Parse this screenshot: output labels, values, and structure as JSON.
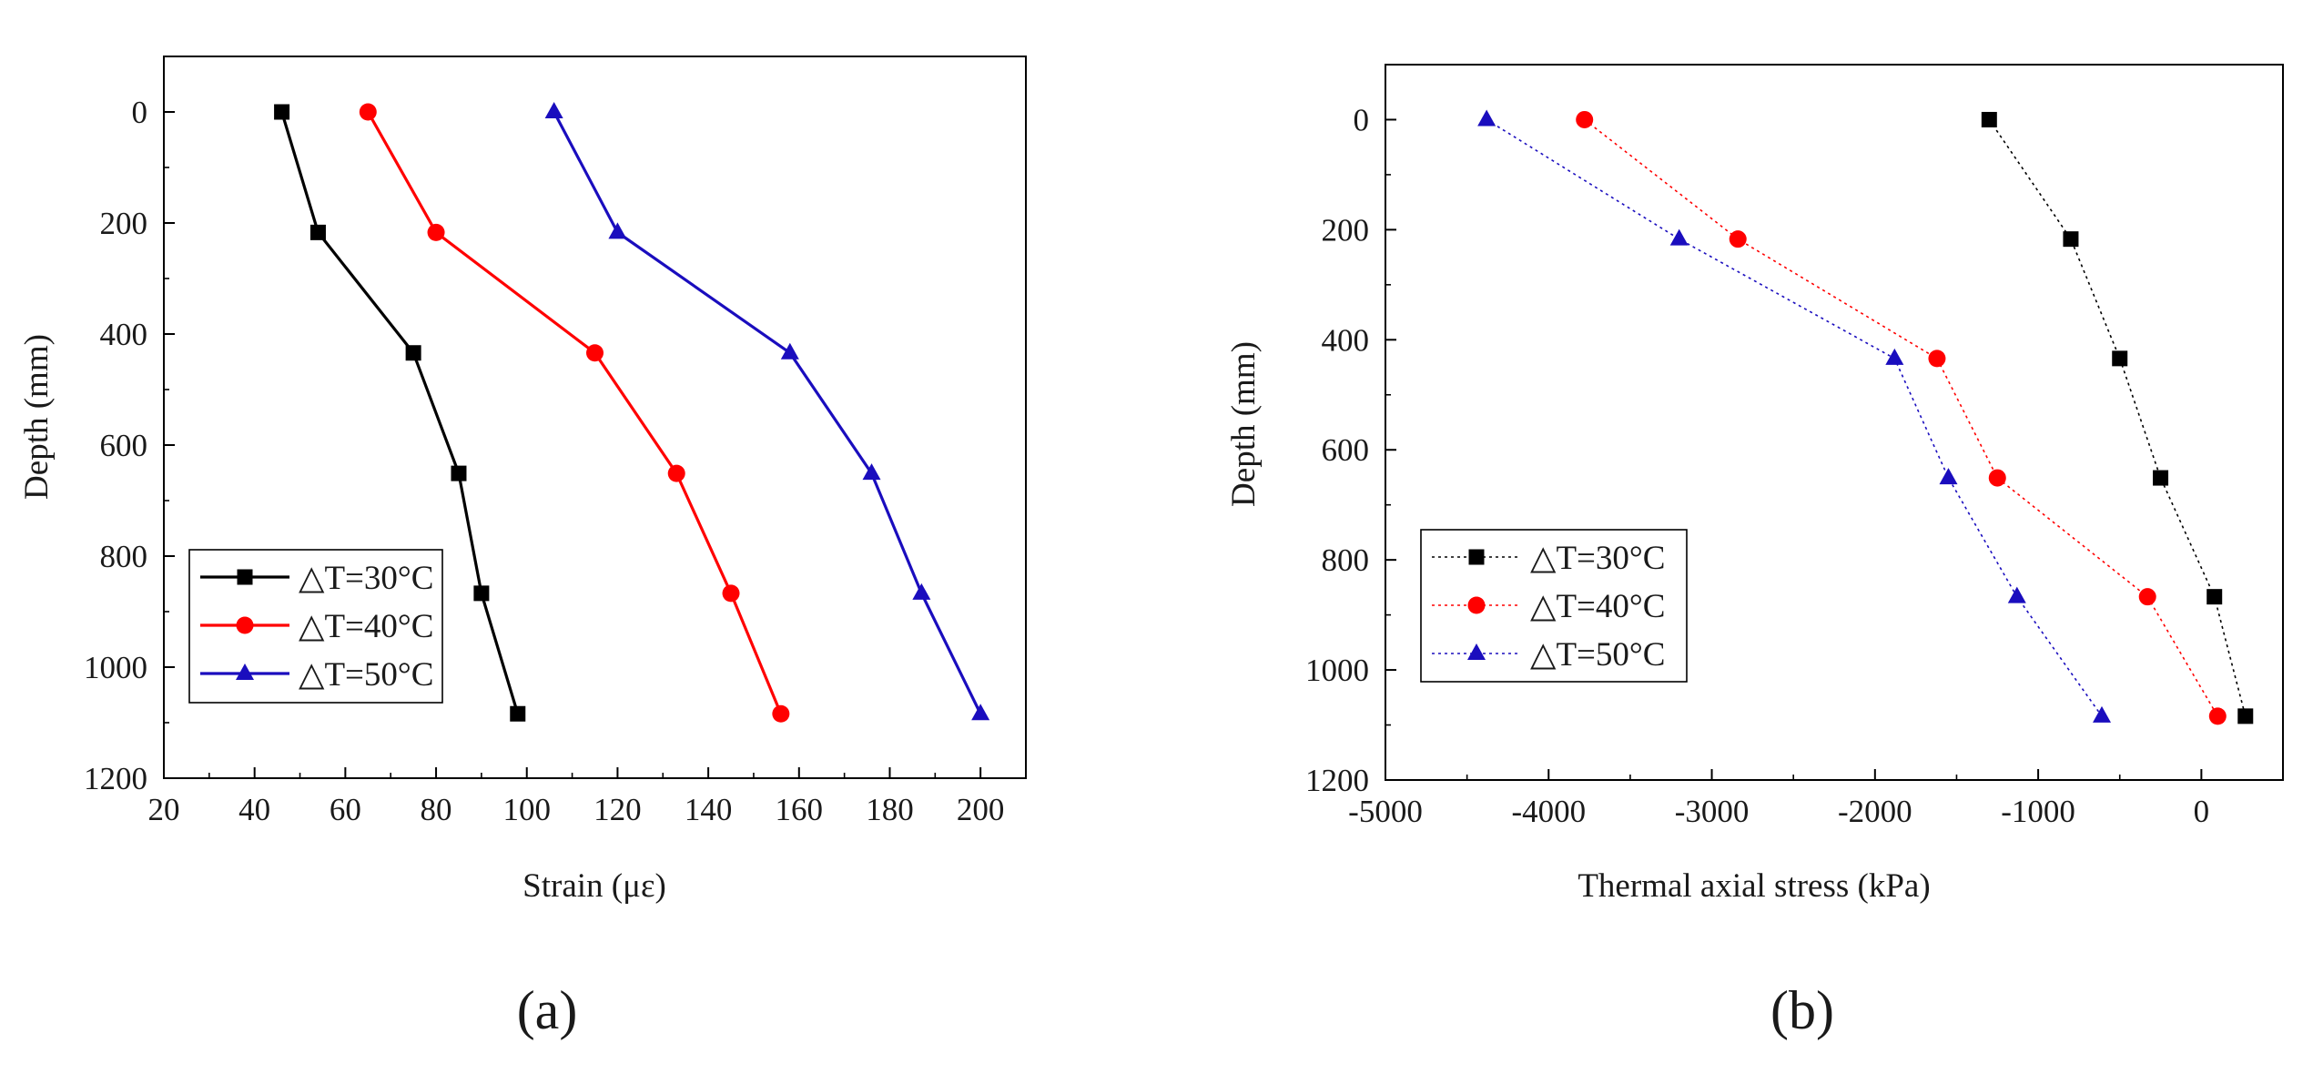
{
  "chart_data": [
    {
      "type": "line",
      "panel_label": "(a)",
      "title": "",
      "xlabel": "Strain (με)",
      "ylabel": "Depth (mm)",
      "xlim": [
        20,
        210
      ],
      "ylim": [
        1200,
        -100
      ],
      "y_inverted": true,
      "x_ticks": [
        20,
        40,
        60,
        80,
        100,
        120,
        140,
        160,
        180,
        200
      ],
      "x_tick_labels": [
        "20",
        "40",
        "60",
        "80",
        "100",
        "120",
        "140",
        "160",
        "180",
        "200"
      ],
      "y_ticks": [
        0,
        200,
        400,
        600,
        800,
        1000,
        1200
      ],
      "y_tick_labels": [
        "0",
        "200",
        "400",
        "600",
        "800",
        "1000",
        "1200"
      ],
      "legend_position": "bottom-left",
      "series": [
        {
          "name": "△T=30°C",
          "color": "#000000",
          "marker": "square",
          "line_style": "solid",
          "points": [
            [
              46,
              0
            ],
            [
              54,
              217
            ],
            [
              75,
              434
            ],
            [
              85,
              651
            ],
            [
              90,
              867
            ],
            [
              98,
              1084
            ]
          ]
        },
        {
          "name": "△T=40°C",
          "color": "#ff0000",
          "marker": "circle",
          "line_style": "solid",
          "points": [
            [
              65,
              0
            ],
            [
              80,
              217
            ],
            [
              115,
              434
            ],
            [
              133,
              651
            ],
            [
              145,
              867
            ],
            [
              156,
              1084
            ]
          ]
        },
        {
          "name": "△T=50°C",
          "color": "#1a0dbe",
          "marker": "triangle",
          "line_style": "solid",
          "points": [
            [
              106,
              0
            ],
            [
              120,
              217
            ],
            [
              158,
              434
            ],
            [
              176,
              651
            ],
            [
              187,
              867
            ],
            [
              200,
              1084
            ]
          ]
        }
      ]
    },
    {
      "type": "line",
      "panel_label": "(b)",
      "title": "",
      "xlabel": "Thermal axial stress (kPa)",
      "ylabel": "Depth (mm)",
      "xlim": [
        -5000,
        500
      ],
      "ylim": [
        1200,
        -100
      ],
      "y_inverted": true,
      "x_ticks": [
        -5000,
        -4000,
        -3000,
        -2000,
        -1000,
        0
      ],
      "x_tick_labels": [
        "-5000",
        "-4000",
        "-3000",
        "-2000",
        "-1000",
        "0"
      ],
      "y_ticks": [
        0,
        200,
        400,
        600,
        800,
        1000,
        1200
      ],
      "y_tick_labels": [
        "0",
        "200",
        "400",
        "600",
        "800",
        "1000",
        "1200"
      ],
      "legend_position": "center-left",
      "series": [
        {
          "name": "△T=30°C",
          "color": "#000000",
          "marker": "square",
          "line_style": "dotted",
          "points": [
            [
              -1300,
              0
            ],
            [
              -800,
              217
            ],
            [
              -500,
              434
            ],
            [
              -250,
              651
            ],
            [
              80,
              867
            ],
            [
              270,
              1084
            ]
          ]
        },
        {
          "name": "△T=40°C",
          "color": "#ff0000",
          "marker": "circle",
          "line_style": "dotted",
          "points": [
            [
              -3780,
              0
            ],
            [
              -2840,
              217
            ],
            [
              -1620,
              434
            ],
            [
              -1250,
              651
            ],
            [
              -330,
              867
            ],
            [
              100,
              1084
            ]
          ]
        },
        {
          "name": "△T=50°C",
          "color": "#1a0dbe",
          "marker": "triangle",
          "line_style": "dotted",
          "points": [
            [
              -4380,
              0
            ],
            [
              -3200,
              217
            ],
            [
              -1880,
              434
            ],
            [
              -1550,
              651
            ],
            [
              -1130,
              867
            ],
            [
              -610,
              1084
            ]
          ]
        }
      ]
    }
  ]
}
